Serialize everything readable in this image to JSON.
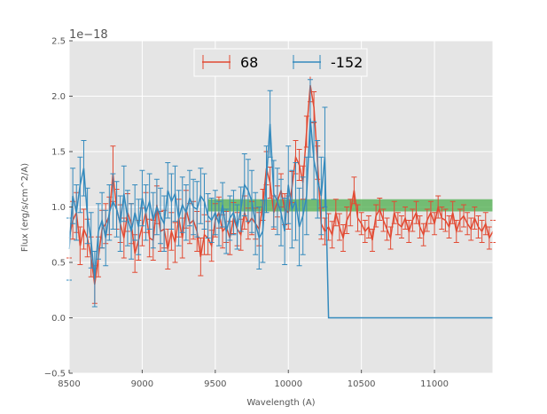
{
  "chart_data": {
    "type": "line",
    "title": "",
    "xlabel": "Wavelength (A)",
    "ylabel": "Flux (erg/s/cm^2/A)",
    "offset_label": "1e−18",
    "xlim": [
      8500,
      11400
    ],
    "ylim": [
      -0.5,
      2.5
    ],
    "x_ticks": [
      8500,
      9000,
      9500,
      10000,
      10500,
      11000
    ],
    "x_tick_labels": [
      "8500",
      "9000",
      "9500",
      "10000",
      "10500",
      "11000"
    ],
    "y_ticks": [
      -0.5,
      0.0,
      0.5,
      1.0,
      1.5,
      2.0,
      2.5
    ],
    "y_tick_labels": [
      "−0.5",
      "0.0",
      "0.5",
      "1.0",
      "1.5",
      "2.0",
      "2.5"
    ],
    "grid": true,
    "background": "#e5e5e5",
    "legend": {
      "placement": "top-center",
      "columns": 2
    },
    "band": {
      "y_low": 0.96,
      "y_high": 1.07,
      "x_start": 9450,
      "x_end": 11400,
      "color": "#4cae4c"
    },
    "series": [
      {
        "name": "68",
        "color": "#e24a33",
        "x": [
          8500,
          8525,
          8550,
          8575,
          8600,
          8625,
          8650,
          8675,
          8700,
          8725,
          8750,
          8775,
          8800,
          8825,
          8850,
          8875,
          8900,
          8925,
          8950,
          8975,
          9000,
          9025,
          9050,
          9075,
          9100,
          9125,
          9150,
          9175,
          9200,
          9225,
          9250,
          9275,
          9300,
          9325,
          9350,
          9375,
          9400,
          9425,
          9450,
          9475,
          9500,
          9525,
          9550,
          9575,
          9600,
          9625,
          9650,
          9675,
          9700,
          9725,
          9750,
          9775,
          9800,
          9825,
          9850,
          9875,
          9900,
          9925,
          9950,
          9975,
          10000,
          10025,
          10050,
          10075,
          10100,
          10125,
          10150,
          10175,
          10200,
          10225,
          10250,
          10275,
          10300,
          10325,
          10350,
          10375,
          10400,
          10425,
          10450,
          10475,
          10500,
          10525,
          10550,
          10575,
          10600,
          10625,
          10650,
          10675,
          10700,
          10725,
          10750,
          10775,
          10800,
          10825,
          10850,
          10875,
          10900,
          10925,
          10950,
          10975,
          11000,
          11025,
          11050,
          11075,
          11100,
          11125,
          11150,
          11175,
          11200,
          11225,
          11250,
          11275,
          11300,
          11325,
          11350,
          11375,
          11400
        ],
        "y": [
          0.72,
          0.88,
          0.95,
          0.65,
          0.8,
          0.72,
          0.55,
          0.3,
          0.55,
          0.8,
          0.85,
          0.92,
          1.3,
          0.98,
          0.85,
          0.72,
          0.95,
          0.85,
          0.58,
          0.7,
          0.82,
          0.95,
          0.72,
          0.7,
          1.02,
          0.78,
          0.8,
          0.62,
          0.78,
          0.68,
          0.9,
          0.72,
          0.98,
          0.85,
          0.88,
          0.78,
          0.55,
          0.75,
          0.72,
          0.65,
          0.88,
          0.95,
          0.78,
          0.82,
          0.72,
          0.9,
          0.8,
          0.75,
          0.95,
          0.85,
          0.9,
          0.85,
          0.8,
          1.02,
          1.35,
          1.22,
          0.95,
          1.05,
          1.15,
          0.98,
          0.95,
          1.18,
          1.45,
          1.38,
          1.22,
          1.68,
          2.1,
          1.9,
          1.4,
          0.85,
          0.78,
          0.82,
          0.75,
          0.95,
          0.82,
          0.72,
          0.88,
          0.95,
          1.15,
          0.9,
          0.85,
          0.78,
          0.82,
          0.7,
          0.92,
          0.98,
          0.88,
          0.8,
          0.72,
          0.95,
          0.85,
          0.82,
          0.9,
          0.78,
          0.88,
          0.95,
          0.82,
          0.75,
          0.88,
          0.95,
          0.85,
          1.0,
          0.9,
          0.88,
          0.82,
          0.95,
          0.78,
          0.88,
          0.92,
          0.85,
          0.8,
          0.9,
          0.82,
          0.78,
          0.85,
          0.72,
          0.78
        ],
        "yerr": [
          0.18,
          0.17,
          0.18,
          0.17,
          0.18,
          0.17,
          0.18,
          0.17,
          0.18,
          0.17,
          0.18,
          0.17,
          0.25,
          0.18,
          0.17,
          0.18,
          0.17,
          0.18,
          0.17,
          0.18,
          0.17,
          0.18,
          0.17,
          0.18,
          0.17,
          0.18,
          0.17,
          0.18,
          0.17,
          0.18,
          0.17,
          0.18,
          0.17,
          0.18,
          0.17,
          0.18,
          0.17,
          0.18,
          0.15,
          0.14,
          0.15,
          0.14,
          0.15,
          0.14,
          0.15,
          0.14,
          0.15,
          0.14,
          0.15,
          0.14,
          0.15,
          0.14,
          0.15,
          0.14,
          0.15,
          0.14,
          0.15,
          0.14,
          0.15,
          0.14,
          0.15,
          0.14,
          0.15,
          0.14,
          0.15,
          0.14,
          0.15,
          0.14,
          0.15,
          0.14,
          0.12,
          0.12,
          0.12,
          0.12,
          0.12,
          0.12,
          0.12,
          0.12,
          0.12,
          0.12,
          0.1,
          0.1,
          0.1,
          0.1,
          0.1,
          0.1,
          0.1,
          0.1,
          0.1,
          0.1,
          0.1,
          0.1,
          0.1,
          0.1,
          0.1,
          0.1,
          0.1,
          0.1,
          0.1,
          0.1,
          0.1,
          0.1,
          0.1,
          0.1,
          0.1,
          0.1,
          0.1,
          0.1,
          0.1,
          0.1,
          0.1,
          0.1,
          0.1,
          0.1,
          0.1,
          0.1,
          0.1
        ]
      },
      {
        "name": "-152",
        "color": "#348abd",
        "x": [
          8500,
          8525,
          8550,
          8575,
          8600,
          8625,
          8650,
          8675,
          8700,
          8725,
          8750,
          8775,
          8800,
          8825,
          8850,
          8875,
          8900,
          8925,
          8950,
          8975,
          9000,
          9025,
          9050,
          9075,
          9100,
          9125,
          9150,
          9175,
          9200,
          9225,
          9250,
          9275,
          9300,
          9325,
          9350,
          9375,
          9400,
          9425,
          9450,
          9475,
          9500,
          9525,
          9550,
          9575,
          9600,
          9625,
          9650,
          9675,
          9700,
          9725,
          9750,
          9775,
          9800,
          9825,
          9850,
          9875,
          9900,
          9925,
          9950,
          9975,
          10000,
          10025,
          10050,
          10075,
          10100,
          10125,
          10150,
          10175,
          10200,
          10225,
          10250,
          10275,
          10300,
          10325,
          10350,
          10375,
          10400,
          10425,
          10450,
          10475,
          10500,
          10525,
          10550,
          10575,
          10600,
          10625,
          10650,
          10675,
          10700,
          10725,
          10750,
          10775,
          10800,
          10825,
          10850,
          10875,
          10900,
          10925,
          10950,
          10975,
          11000,
          11025,
          11050,
          11075,
          11100,
          11125,
          11150,
          11175,
          11200,
          11225,
          11250,
          11275,
          11300,
          11325,
          11350,
          11375,
          11400
        ],
        "y": [
          0.62,
          1.1,
          0.95,
          1.2,
          1.35,
          0.92,
          0.7,
          0.35,
          0.78,
          0.88,
          0.72,
          0.95,
          1.05,
          0.98,
          0.85,
          1.12,
          0.9,
          0.78,
          0.95,
          0.82,
          1.08,
          0.95,
          1.05,
          0.88,
          1.0,
          0.92,
          0.85,
          1.15,
          1.05,
          1.12,
          0.9,
          1.02,
          0.95,
          1.08,
          1.0,
          0.98,
          1.1,
          1.05,
          0.92,
          0.88,
          0.95,
          0.85,
          1.02,
          0.78,
          0.9,
          0.95,
          0.82,
          0.98,
          1.2,
          1.15,
          1.05,
          0.85,
          0.72,
          0.78,
          1.25,
          1.75,
          1.12,
          1.05,
          0.95,
          0.78,
          1.2,
          0.98,
          1.05,
          0.82,
          0.92,
          1.1,
          1.8,
          1.42,
          1.25,
          1.1,
          1.45,
          0.0,
          0.0,
          0.0,
          0.0,
          0.0,
          0.0,
          0.0,
          0.0,
          0.0,
          0.0,
          0.0,
          0.0,
          0.0,
          0.0,
          0.0,
          0.0,
          0.0,
          0.0,
          0.0,
          0.0,
          0.0,
          0.0,
          0.0,
          0.0,
          0.0,
          0.0,
          0.0,
          0.0,
          0.0,
          0.0,
          0.0,
          0.0,
          0.0,
          0.0,
          0.0,
          0.0,
          0.0,
          0.0,
          0.0,
          0.0,
          0.0,
          0.0,
          0.0,
          0.0,
          0.0,
          0.0
        ],
        "yerr": [
          0.28,
          0.25,
          0.25,
          0.25,
          0.25,
          0.25,
          0.25,
          0.25,
          0.25,
          0.25,
          0.25,
          0.25,
          0.25,
          0.25,
          0.25,
          0.25,
          0.25,
          0.25,
          0.25,
          0.25,
          0.25,
          0.25,
          0.25,
          0.25,
          0.25,
          0.25,
          0.25,
          0.25,
          0.25,
          0.25,
          0.25,
          0.25,
          0.25,
          0.25,
          0.25,
          0.25,
          0.25,
          0.25,
          0.2,
          0.2,
          0.2,
          0.2,
          0.2,
          0.2,
          0.2,
          0.2,
          0.2,
          0.2,
          0.28,
          0.28,
          0.28,
          0.28,
          0.28,
          0.28,
          0.3,
          0.3,
          0.3,
          0.3,
          0.3,
          0.3,
          0.35,
          0.35,
          0.35,
          0.35,
          0.35,
          0.35,
          0.35,
          0.35,
          0.35,
          0.35,
          0.45,
          0,
          0,
          0,
          0,
          0,
          0,
          0,
          0,
          0,
          0,
          0,
          0,
          0,
          0,
          0,
          0,
          0,
          0,
          0,
          0,
          0,
          0,
          0,
          0,
          0,
          0,
          0,
          0,
          0,
          0,
          0,
          0,
          0,
          0,
          0,
          0,
          0,
          0,
          0,
          0,
          0,
          0,
          0,
          0,
          0,
          0
        ]
      }
    ]
  }
}
